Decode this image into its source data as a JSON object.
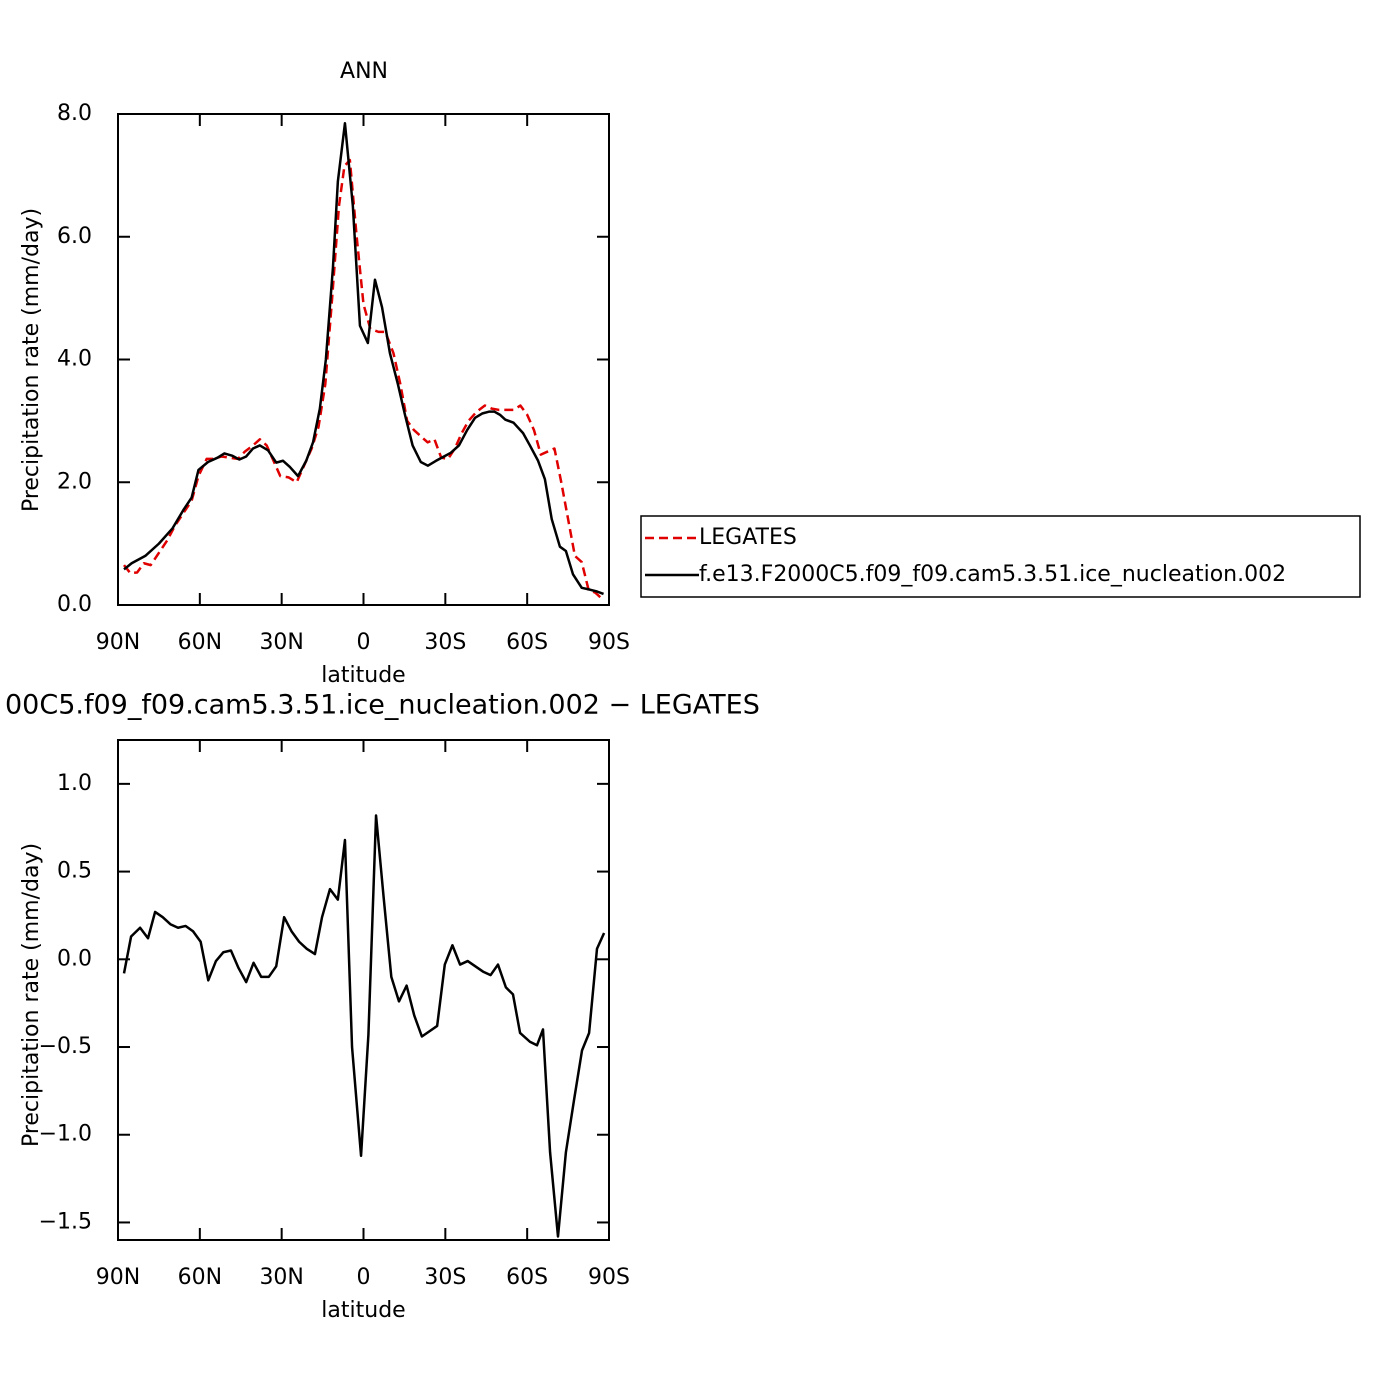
{
  "chart_data": [
    {
      "type": "line",
      "title": "ANN",
      "xlabel": "latitude",
      "ylabel": "Precipitation rate (mm/day)",
      "xlim": [
        90,
        -90
      ],
      "xticks": [
        {
          "value": 90,
          "label": "90N"
        },
        {
          "value": 60,
          "label": "60N"
        },
        {
          "value": 30,
          "label": "30N"
        },
        0,
        {
          "value": -30,
          "label": "30S"
        },
        {
          "value": -60,
          "label": "60S"
        },
        {
          "value": -90,
          "label": "90S"
        }
      ],
      "ylim": [
        0,
        8
      ],
      "yticks": [
        {
          "value": 0,
          "label": "0.0"
        },
        {
          "value": 2,
          "label": "2.0"
        },
        {
          "value": 4,
          "label": "4.0"
        },
        {
          "value": 6,
          "label": "6.0"
        },
        {
          "value": 8,
          "label": "8.0"
        }
      ],
      "legend": "right",
      "series": [
        {
          "name": "LEGATES",
          "color": "#e00000",
          "line_style": "dashed",
          "x": [
            87.8,
            85.5,
            83,
            80.5,
            78,
            75,
            72,
            69,
            66,
            63,
            60.5,
            57.5,
            55,
            52,
            49,
            46,
            43.5,
            40.5,
            38,
            35.5,
            33,
            30.5,
            27.5,
            24.5,
            21.5,
            19,
            16.5,
            14,
            11.5,
            9,
            7,
            5,
            2.5,
            0,
            -2.5,
            -5.5,
            -8,
            -11,
            -13.5,
            -16,
            -18.5,
            -21,
            -23.5,
            -26,
            -28.5,
            -31,
            -33.5,
            -36,
            -38.5,
            -41.5,
            -44.5,
            -47,
            -49.5,
            -52.5,
            -55,
            -57.5,
            -60,
            -62.5,
            -65,
            -67.5,
            -70,
            -72.5,
            -75,
            -77.5,
            -80,
            -82.5,
            -85,
            -88
          ],
          "values": [
            0.65,
            0.52,
            0.53,
            0.68,
            0.65,
            0.85,
            1.05,
            1.3,
            1.5,
            1.7,
            2.1,
            2.38,
            2.38,
            2.42,
            2.4,
            2.38,
            2.5,
            2.6,
            2.7,
            2.6,
            2.35,
            2.1,
            2.08,
            2.0,
            2.3,
            2.55,
            2.9,
            3.6,
            5.0,
            6.5,
            7.15,
            7.25,
            6.0,
            4.9,
            4.5,
            4.45,
            4.45,
            4.1,
            3.6,
            3.0,
            2.85,
            2.75,
            2.65,
            2.7,
            2.4,
            2.38,
            2.55,
            2.8,
            3.0,
            3.15,
            3.25,
            3.2,
            3.18,
            3.18,
            3.18,
            3.25,
            3.1,
            2.85,
            2.45,
            2.5,
            2.55,
            2.0,
            1.4,
            0.8,
            0.7,
            0.25,
            0.2,
            0.08
          ]
        },
        {
          "name": "f.e13.F2000C5.f09_f09.cam5.3.51.ice_nucleation.002",
          "color": "#000000",
          "line_style": "solid",
          "x": [
            87.8,
            85,
            80,
            75,
            70,
            66,
            63,
            60.5,
            57,
            53.5,
            51,
            48,
            45.5,
            43,
            40.5,
            38,
            35,
            32,
            29.5,
            27,
            24,
            21,
            18.5,
            16,
            13.8,
            11.2,
            9.4,
            6.8,
            3.9,
            1.3,
            -1.6,
            -4.2,
            -6.8,
            -9.7,
            -12.6,
            -15.2,
            -18,
            -21,
            -23.6,
            -26.6,
            -29.5,
            -32,
            -35,
            -38,
            -40.9,
            -43.5,
            -46,
            -48,
            -50,
            -52,
            -55,
            -58.5,
            -61,
            -64,
            -66.5,
            -69,
            -72,
            -74.2,
            -76.8,
            -80,
            -83,
            -85.6,
            -88
          ],
          "values": [
            0.58,
            0.68,
            0.8,
            1.0,
            1.25,
            1.55,
            1.75,
            2.2,
            2.33,
            2.4,
            2.47,
            2.43,
            2.37,
            2.42,
            2.55,
            2.6,
            2.52,
            2.32,
            2.35,
            2.25,
            2.1,
            2.35,
            2.65,
            3.2,
            4.0,
            5.5,
            6.9,
            7.85,
            6.5,
            4.55,
            4.27,
            5.3,
            4.85,
            4.1,
            3.6,
            3.1,
            2.6,
            2.33,
            2.27,
            2.35,
            2.42,
            2.48,
            2.6,
            2.85,
            3.05,
            3.12,
            3.15,
            3.15,
            3.1,
            3.02,
            2.97,
            2.8,
            2.6,
            2.35,
            2.05,
            1.4,
            0.95,
            0.88,
            0.5,
            0.28,
            0.25,
            0.22,
            0.18
          ]
        }
      ]
    },
    {
      "type": "line",
      "title": "00C5.f09_f09.cam5.3.51.ice_nucleation.002 − LEGATES",
      "xlabel": "latitude",
      "ylabel": "Precipitation rate (mm/day)",
      "xlim": [
        90,
        -90
      ],
      "xticks": [
        {
          "value": 90,
          "label": "90N"
        },
        {
          "value": 60,
          "label": "60N"
        },
        {
          "value": 30,
          "label": "30N"
        },
        0,
        {
          "value": -30,
          "label": "30S"
        },
        {
          "value": -60,
          "label": "60S"
        },
        {
          "value": -90,
          "label": "90S"
        }
      ],
      "ylim": [
        -1.6,
        1.25
      ],
      "yticks": [
        {
          "value": -1.5,
          "label": "−1.5"
        },
        {
          "value": -1.0,
          "label": "−1.0"
        },
        {
          "value": -0.5,
          "label": "−0.5"
        },
        {
          "value": 0,
          "label": "0.0"
        },
        {
          "value": 0.5,
          "label": "0.5"
        },
        {
          "value": 1.0,
          "label": "1.0"
        }
      ],
      "series": [
        {
          "color": "#000000",
          "line_style": "solid",
          "x": [
            87.8,
            85.2,
            81.9,
            79,
            76.4,
            73.6,
            70.8,
            68,
            65.2,
            62.5,
            59.7,
            56.9,
            54.1,
            51.4,
            48.6,
            45.8,
            43,
            40.3,
            37.5,
            34.7,
            32,
            29.1,
            26.4,
            23.6,
            20.8,
            17.8,
            15.2,
            12.3,
            9.4,
            6.8,
            4.2,
            0.9,
            -1.8,
            -4.6,
            -7.4,
            -10.2,
            -13,
            -15.8,
            -18.6,
            -21.4,
            -24.2,
            -27,
            -29.8,
            -32.6,
            -35.4,
            -38.2,
            -41,
            -43.8,
            -46.6,
            -49.3,
            -52.2,
            -54.8,
            -57.4,
            -61,
            -63.6,
            -65.8,
            -68.4,
            -71.3,
            -74.2,
            -77.2,
            -80.1,
            -82.7,
            -85.6,
            -88.2
          ],
          "values": [
            -0.08,
            0.13,
            0.18,
            0.12,
            0.27,
            0.24,
            0.2,
            0.18,
            0.19,
            0.16,
            0.1,
            -0.12,
            -0.01,
            0.04,
            0.05,
            -0.05,
            -0.13,
            -0.02,
            -0.1,
            -0.1,
            -0.04,
            0.24,
            0.16,
            0.1,
            0.06,
            0.03,
            0.24,
            0.4,
            0.34,
            0.68,
            -0.5,
            -1.12,
            -0.43,
            0.82,
            0.35,
            -0.1,
            -0.24,
            -0.15,
            -0.32,
            -0.44,
            -0.41,
            -0.38,
            -0.03,
            0.08,
            -0.03,
            -0.01,
            -0.04,
            -0.07,
            -0.09,
            -0.03,
            -0.16,
            -0.2,
            -0.42,
            -0.47,
            -0.49,
            -0.4,
            -1.1,
            -1.58,
            -1.1,
            -0.8,
            -0.52,
            -0.42,
            0.06,
            0.15
          ]
        }
      ]
    }
  ]
}
